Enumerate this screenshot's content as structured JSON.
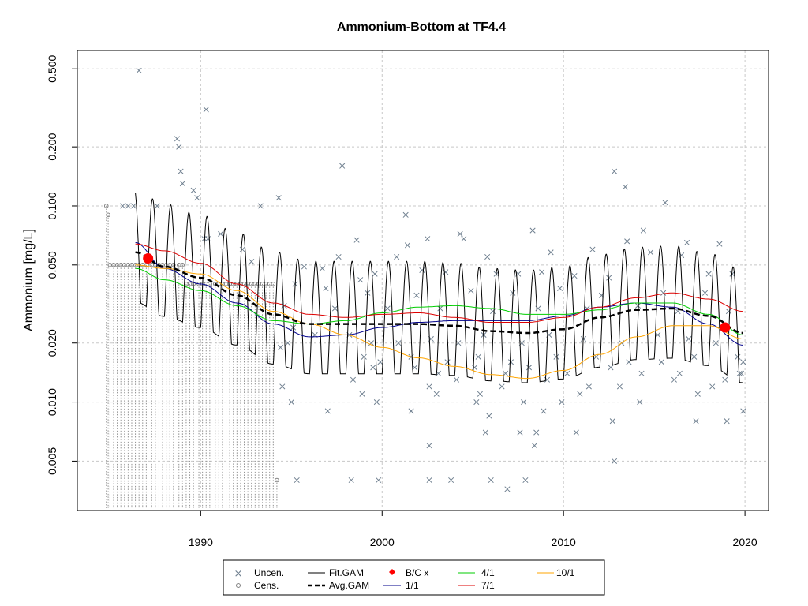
{
  "chart_data": {
    "type": "scatter",
    "title": "Ammonium-Bottom at TF4.4",
    "xlabel": "",
    "ylabel": "Ammonium [mg/L]",
    "y_scale": "log",
    "xlim": [
      1983.2,
      2021.3
    ],
    "ylim": [
      0.0028,
      0.62
    ],
    "x_ticks": [
      1990,
      2000,
      2010,
      2020
    ],
    "y_ticks": [
      0.005,
      0.01,
      0.02,
      0.05,
      0.1,
      0.2,
      0.5
    ],
    "y_tick_labels": [
      "0.005",
      "0.010",
      "0.020",
      "0.050",
      "0.100",
      "0.200",
      "0.500"
    ],
    "grid": true,
    "legend": {
      "placement": "bottom",
      "entries": [
        "Uncen.",
        "Cens.",
        "Fit.GAM",
        "Avg.GAM",
        "B/C x",
        "1/1",
        "4/1",
        "7/1",
        "10/1"
      ]
    },
    "colors": {
      "uncensored": "#708090",
      "censored": "#808080",
      "fit_gam": "#000000",
      "avg_gam": "#000000",
      "bc": "#ff0000",
      "d1_1": "#00008b",
      "d4_1": "#00cd00",
      "d7_1": "#dd0000",
      "d10_1": "#ffa500"
    },
    "uncensored_points": [
      [
        1986.6,
        0.49
      ],
      [
        1990.3,
        0.31
      ],
      [
        1988.7,
        0.22
      ],
      [
        1988.8,
        0.2
      ],
      [
        1988.9,
        0.15
      ],
      [
        1989.0,
        0.13
      ],
      [
        1989.6,
        0.12
      ],
      [
        1989.8,
        0.11
      ],
      [
        1997.8,
        0.16
      ],
      [
        2012.8,
        0.15
      ],
      [
        2013.4,
        0.125
      ],
      [
        2015.6,
        0.104
      ],
      [
        1994.3,
        0.11
      ],
      [
        1993.3,
        0.1
      ],
      [
        2001.3,
        0.09
      ],
      [
        1985.7,
        0.1
      ],
      [
        1986.0,
        0.1
      ],
      [
        1986.3,
        0.1
      ],
      [
        1987.6,
        0.1
      ],
      [
        1990.2,
        0.068
      ],
      [
        1990.4,
        0.068
      ],
      [
        1991.1,
        0.072
      ],
      [
        1992.3,
        0.06
      ],
      [
        1992.8,
        0.052
      ],
      [
        1998.6,
        0.067
      ],
      [
        2001.4,
        0.063
      ],
      [
        2002.5,
        0.068
      ],
      [
        2004.3,
        0.072
      ],
      [
        2004.5,
        0.068
      ],
      [
        2008.3,
        0.075
      ],
      [
        2013.5,
        0.066
      ],
      [
        2014.4,
        0.075
      ],
      [
        2016.8,
        0.065
      ],
      [
        2018.6,
        0.064
      ],
      [
        2018.0,
        0.045
      ],
      [
        2019.3,
        0.045
      ],
      [
        1997.6,
        0.055
      ],
      [
        2000.8,
        0.055
      ],
      [
        2005.8,
        0.055
      ],
      [
        2009.3,
        0.058
      ],
      [
        2011.6,
        0.06
      ],
      [
        2014.8,
        0.058
      ],
      [
        2016.5,
        0.056
      ],
      [
        1995.7,
        0.049
      ],
      [
        1996.7,
        0.048
      ],
      [
        1998.8,
        0.042
      ],
      [
        1999.6,
        0.045
      ],
      [
        2002.2,
        0.047
      ],
      [
        2003.5,
        0.046
      ],
      [
        2006.3,
        0.045
      ],
      [
        2007.5,
        0.045
      ],
      [
        2008.8,
        0.046
      ],
      [
        2010.6,
        0.044
      ],
      [
        2012.5,
        0.043
      ],
      [
        1995.2,
        0.04
      ],
      [
        1996.9,
        0.038
      ],
      [
        1999.2,
        0.036
      ],
      [
        2001.9,
        0.035
      ],
      [
        2004.9,
        0.037
      ],
      [
        2007.2,
        0.036
      ],
      [
        2009.8,
        0.038
      ],
      [
        2012.1,
        0.035
      ],
      [
        2015.5,
        0.036
      ],
      [
        2017.8,
        0.036
      ],
      [
        1994.6,
        0.031
      ],
      [
        1997.4,
        0.03
      ],
      [
        2000.3,
        0.03
      ],
      [
        2003.2,
        0.03
      ],
      [
        2006.1,
        0.029
      ],
      [
        2008.6,
        0.03
      ],
      [
        2011.3,
        0.03
      ],
      [
        2014.1,
        0.031
      ],
      [
        2016.3,
        0.029
      ],
      [
        2019.1,
        0.029
      ],
      [
        1995.1,
        0.024
      ],
      [
        1996.3,
        0.022
      ],
      [
        1998.2,
        0.022
      ],
      [
        1999.4,
        0.02
      ],
      [
        2000.9,
        0.02
      ],
      [
        2002.7,
        0.021
      ],
      [
        2004.2,
        0.02
      ],
      [
        2005.6,
        0.022
      ],
      [
        2007.7,
        0.02
      ],
      [
        2009.2,
        0.022
      ],
      [
        2011.1,
        0.021
      ],
      [
        2013.2,
        0.02
      ],
      [
        2015.2,
        0.022
      ],
      [
        2016.9,
        0.021
      ],
      [
        2018.4,
        0.02
      ],
      [
        2019.6,
        0.017
      ],
      [
        1994.4,
        0.019
      ],
      [
        1994.8,
        0.02
      ],
      [
        1999.0,
        0.017
      ],
      [
        1999.9,
        0.016
      ],
      [
        2001.6,
        0.017
      ],
      [
        2003.6,
        0.016
      ],
      [
        2005.3,
        0.017
      ],
      [
        2007.1,
        0.016
      ],
      [
        2009.6,
        0.017
      ],
      [
        2011.8,
        0.017
      ],
      [
        2013.6,
        0.016
      ],
      [
        2015.4,
        0.016
      ],
      [
        2017.2,
        0.017
      ],
      [
        2019.9,
        0.016
      ],
      [
        1999.5,
        0.015
      ],
      [
        2001.8,
        0.015
      ],
      [
        2003.1,
        0.014
      ],
      [
        2005.1,
        0.015
      ],
      [
        2006.8,
        0.014
      ],
      [
        2008.1,
        0.015
      ],
      [
        2010.2,
        0.014
      ],
      [
        2012.6,
        0.015
      ],
      [
        2014.3,
        0.014
      ],
      [
        2016.4,
        0.014
      ],
      [
        2019.7,
        0.014
      ],
      [
        2019.8,
        0.014
      ],
      [
        1994.5,
        0.012
      ],
      [
        1998.4,
        0.013
      ],
      [
        2002.6,
        0.012
      ],
      [
        2004.1,
        0.013
      ],
      [
        2006.6,
        0.012
      ],
      [
        2009.1,
        0.013
      ],
      [
        2011.4,
        0.012
      ],
      [
        2013.1,
        0.012
      ],
      [
        2016.1,
        0.013
      ],
      [
        2018.2,
        0.012
      ],
      [
        1998.9,
        0.011
      ],
      [
        2003.0,
        0.011
      ],
      [
        2005.4,
        0.011
      ],
      [
        2010.9,
        0.011
      ],
      [
        2017.4,
        0.011
      ],
      [
        2018.9,
        0.013
      ],
      [
        1995.0,
        0.01
      ],
      [
        1999.7,
        0.01
      ],
      [
        2005.2,
        0.01
      ],
      [
        2007.8,
        0.01
      ],
      [
        2009.9,
        0.01
      ],
      [
        2014.2,
        0.01
      ],
      [
        1997.0,
        0.009
      ],
      [
        2001.6,
        0.009
      ],
      [
        2008.9,
        0.009
      ],
      [
        2019.9,
        0.009
      ],
      [
        2005.9,
        0.0085
      ],
      [
        2012.7,
        0.008
      ],
      [
        2017.3,
        0.008
      ],
      [
        2019.0,
        0.008
      ],
      [
        2005.7,
        0.007
      ],
      [
        2007.6,
        0.007
      ],
      [
        2008.5,
        0.007
      ],
      [
        2010.7,
        0.007
      ],
      [
        2008.4,
        0.006
      ],
      [
        2002.6,
        0.006
      ],
      [
        2012.8,
        0.005
      ],
      [
        1995.3,
        0.004
      ],
      [
        1998.3,
        0.004
      ],
      [
        1999.8,
        0.004
      ],
      [
        2002.6,
        0.004
      ],
      [
        2003.8,
        0.004
      ],
      [
        2006.0,
        0.004
      ],
      [
        2007.9,
        0.004
      ],
      [
        2006.9,
        0.0036
      ]
    ],
    "censored_points": [
      [
        1984.8,
        0.1
      ],
      [
        1984.9,
        0.09
      ],
      [
        1985.0,
        0.05
      ],
      [
        1985.2,
        0.05
      ],
      [
        1985.4,
        0.05
      ],
      [
        1985.6,
        0.05
      ],
      [
        1985.8,
        0.05
      ],
      [
        1986.0,
        0.05
      ],
      [
        1986.2,
        0.05
      ],
      [
        1986.4,
        0.05
      ],
      [
        1986.6,
        0.05
      ],
      [
        1986.8,
        0.05
      ],
      [
        1987.0,
        0.05
      ],
      [
        1987.3,
        0.05
      ],
      [
        1987.5,
        0.05
      ],
      [
        1987.7,
        0.05
      ],
      [
        1987.9,
        0.05
      ],
      [
        1988.1,
        0.05
      ],
      [
        1988.3,
        0.05
      ],
      [
        1988.5,
        0.05
      ],
      [
        1988.8,
        0.05
      ],
      [
        1989.0,
        0.05
      ],
      [
        1989.2,
        0.04
      ],
      [
        1989.4,
        0.04
      ],
      [
        1989.6,
        0.04
      ],
      [
        1989.9,
        0.04
      ],
      [
        1990.1,
        0.04
      ],
      [
        1990.3,
        0.04
      ],
      [
        1990.5,
        0.04
      ],
      [
        1990.8,
        0.04
      ],
      [
        1991.0,
        0.04
      ],
      [
        1991.2,
        0.04
      ],
      [
        1991.4,
        0.04
      ],
      [
        1991.6,
        0.04
      ],
      [
        1991.8,
        0.04
      ],
      [
        1992.0,
        0.04
      ],
      [
        1992.2,
        0.04
      ],
      [
        1992.4,
        0.04
      ],
      [
        1992.6,
        0.04
      ],
      [
        1992.8,
        0.04
      ],
      [
        1993.0,
        0.04
      ],
      [
        1993.2,
        0.04
      ],
      [
        1993.4,
        0.04
      ],
      [
        1993.6,
        0.04
      ],
      [
        1993.8,
        0.04
      ],
      [
        1994.0,
        0.04
      ],
      [
        1994.2,
        0.004
      ]
    ],
    "bc_points": [
      [
        1987.1,
        0.054
      ],
      [
        2018.9,
        0.024
      ]
    ],
    "smooth_series": [
      {
        "name": "1/1",
        "x": [
          1986.4,
          1988,
          1990,
          1992,
          1994,
          1996,
          1998,
          2000,
          2002,
          2004,
          2006,
          2008,
          2010,
          2012,
          2014,
          2016,
          2018,
          2019.9
        ],
        "y": [
          0.065,
          0.048,
          0.04,
          0.032,
          0.025,
          0.0215,
          0.022,
          0.024,
          0.0255,
          0.026,
          0.026,
          0.026,
          0.0275,
          0.0305,
          0.032,
          0.0305,
          0.025,
          0.0195
        ]
      },
      {
        "name": "4/1",
        "x": [
          1986.4,
          1988,
          1990,
          1992,
          1994,
          1996,
          1998,
          2000,
          2002,
          2004,
          2006,
          2008,
          2010,
          2012,
          2014,
          2016,
          2018,
          2019.9
        ],
        "y": [
          0.048,
          0.042,
          0.037,
          0.031,
          0.026,
          0.025,
          0.026,
          0.0285,
          0.0305,
          0.031,
          0.03,
          0.028,
          0.028,
          0.0295,
          0.032,
          0.032,
          0.028,
          0.022
        ]
      },
      {
        "name": "7/1",
        "x": [
          1986.4,
          1988,
          1990,
          1992,
          1994,
          1996,
          1998,
          2000,
          2002,
          2004,
          2006,
          2008,
          2010,
          2012,
          2014,
          2016,
          2018,
          2019.9
        ],
        "y": [
          0.064,
          0.059,
          0.051,
          0.04,
          0.032,
          0.028,
          0.027,
          0.028,
          0.0285,
          0.027,
          0.0255,
          0.0255,
          0.027,
          0.0305,
          0.034,
          0.036,
          0.0335,
          0.029
        ]
      },
      {
        "name": "10/1",
        "x": [
          1986.4,
          1988,
          1990,
          1992,
          1994,
          1996,
          1998,
          2000,
          2002,
          2004,
          2006,
          2008,
          2010,
          2012,
          2014,
          2016,
          2018,
          2019.9
        ],
        "y": [
          0.05,
          0.048,
          0.045,
          0.037,
          0.029,
          0.025,
          0.022,
          0.019,
          0.0168,
          0.0152,
          0.0138,
          0.0132,
          0.0145,
          0.0175,
          0.0215,
          0.0245,
          0.0245,
          0.021
        ]
      },
      {
        "name": "Avg.GAM",
        "x": [
          1986.4,
          1988,
          1990,
          1992,
          1994,
          1996,
          1998,
          2000,
          2002,
          2004,
          2006,
          2008,
          2010,
          2012,
          2014,
          2016,
          2018,
          2019.9
        ],
        "y": [
          0.058,
          0.049,
          0.043,
          0.035,
          0.028,
          0.025,
          0.025,
          0.025,
          0.025,
          0.0245,
          0.023,
          0.0225,
          0.0235,
          0.027,
          0.0295,
          0.03,
          0.0275,
          0.0225
        ]
      }
    ],
    "fit_gam": {
      "name": "Fit.GAM",
      "x_start": 1986.4,
      "x_end": 2019.9,
      "period": 1,
      "amplitude_log": 0.37,
      "baseline": "Avg.GAM"
    }
  }
}
